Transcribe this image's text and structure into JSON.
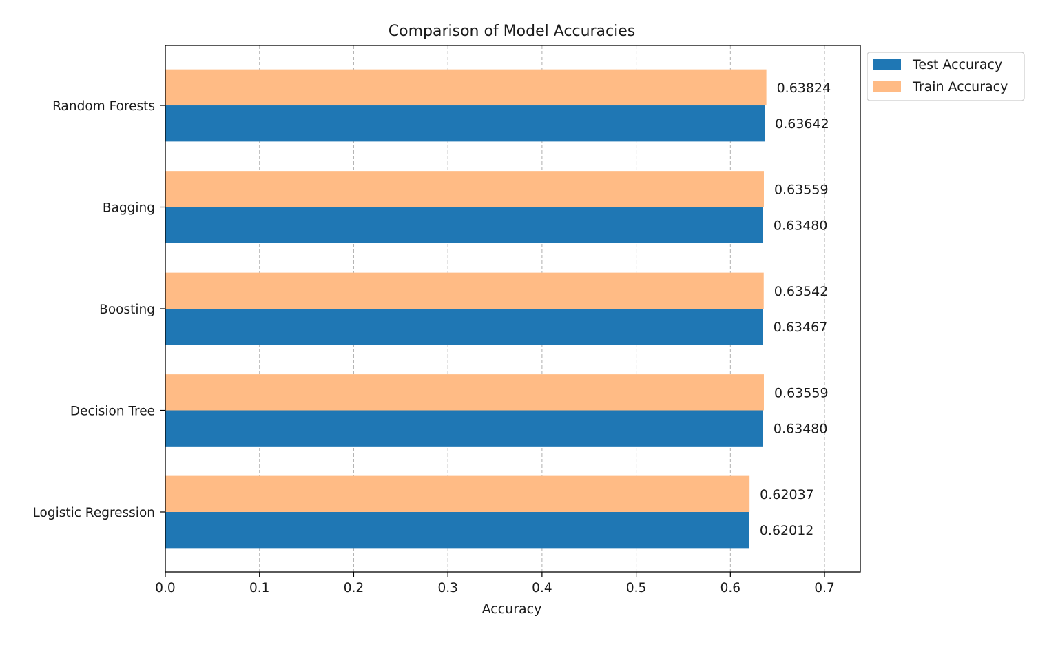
{
  "chart_data": {
    "type": "bar",
    "orientation": "horizontal",
    "title": "Comparison of Model Accuracies",
    "xlabel": "Accuracy",
    "ylabel": "",
    "categories": [
      "Logistic Regression",
      "Decision Tree",
      "Boosting",
      "Bagging",
      "Random Forests"
    ],
    "series": [
      {
        "name": "Test Accuracy",
        "color": "#1f77b4",
        "values": [
          0.62012,
          0.6348,
          0.63467,
          0.6348,
          0.63642
        ],
        "labels": [
          "0.62012",
          "0.63480",
          "0.63467",
          "0.63480",
          "0.63642"
        ]
      },
      {
        "name": "Train Accuracy",
        "color": "#ffbb85",
        "values": [
          0.62037,
          0.63559,
          0.63542,
          0.63559,
          0.63824
        ],
        "labels": [
          "0.62037",
          "0.63559",
          "0.63542",
          "0.63559",
          "0.63824"
        ]
      }
    ],
    "xlim": [
      0,
      0.738
    ],
    "xticks": [
      0.0,
      0.1,
      0.2,
      0.3,
      0.4,
      0.5,
      0.6,
      0.7
    ],
    "xtick_labels": [
      "0.0",
      "0.1",
      "0.2",
      "0.3",
      "0.4",
      "0.5",
      "0.6",
      "0.7"
    ],
    "grid": "x-dashed",
    "legend": "upper-right-outside"
  }
}
